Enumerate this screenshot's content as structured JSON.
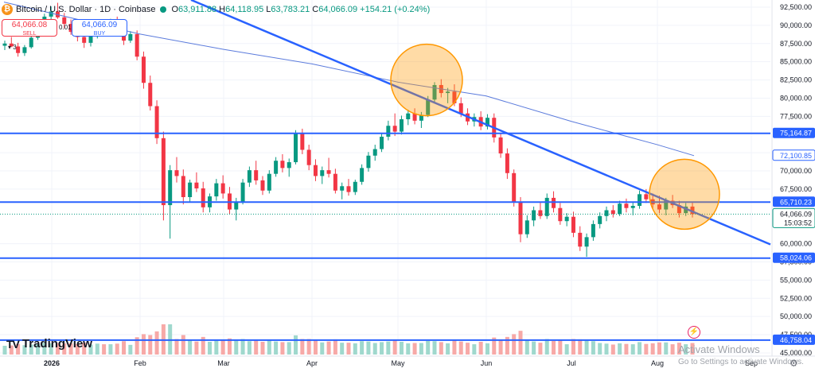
{
  "header": {
    "symbol": "Bitcoin / U.S. Dollar · 1D · Coinbase",
    "o_label": "O",
    "o_value": "63,911.88",
    "h_label": "H",
    "h_value": "64,118.95",
    "l_label": "L",
    "l_value": "63,783.21",
    "c_label": "C",
    "c_value": "64,066.09",
    "change": "+154.21 (+0.24%)"
  },
  "trade": {
    "sell_price": "64,066.08",
    "sell_label": "SELL",
    "buy_price": "64,066.09",
    "buy_label": "BUY",
    "spread": "0.01"
  },
  "indicator_toggle": "3",
  "logo_text": "TradingView",
  "watermark": {
    "line1": "Activate Windows",
    "line2": "Go to Settings to activate Windows."
  },
  "chart_data": {
    "type": "candlestick",
    "y_axis_ticks": [
      "92,500.00",
      "90,000.00",
      "87,500.00",
      "85,000.00",
      "82,500.00",
      "80,000.00",
      "77,500.00",
      "72,500.00",
      "70,000.00",
      "67,500.00",
      "60,000.00",
      "57,500.00",
      "55,000.00",
      "52,500.00",
      "50,000.00",
      "47,500.00",
      "45,000.00"
    ],
    "y_axis_values": [
      92500,
      90000,
      87500,
      85000,
      82500,
      80000,
      77500,
      72500,
      70000,
      67500,
      60000,
      57500,
      55000,
      52500,
      50000,
      47500,
      45000
    ],
    "x_axis_labels": [
      "2026",
      "Feb",
      "Mar",
      "Apr",
      "May",
      "Jun",
      "Jul",
      "Aug",
      "Sep"
    ],
    "ylim": [
      44000,
      93000
    ],
    "horizontal_levels": [
      {
        "value": 75164.87,
        "label": "75,164.87"
      },
      {
        "value": 65710.23,
        "label": "65,710.23"
      },
      {
        "value": 58024.06,
        "label": "58,024.06"
      },
      {
        "value": 46758.04,
        "label": "46,758.04"
      }
    ],
    "price_tags": [
      {
        "value": 72100.85,
        "label": "72,100.85",
        "kind": "ma"
      },
      {
        "value": 64066.09,
        "label": "64,066.09",
        "kind": "last",
        "sub": "15:03:52"
      }
    ],
    "trendline_start": [
      {
        "x": "Jan",
        "y": 93500
      }
    ],
    "trendline_end": [
      {
        "x": "Sep",
        "y": 59900
      }
    ],
    "moving_average": [
      {
        "x": "Jan",
        "y": 93200
      },
      {
        "x": "Feb",
        "y": 88800
      },
      {
        "x": "Mar",
        "y": 86700
      },
      {
        "x": "Apr",
        "y": 84700
      },
      {
        "x": "May",
        "y": 82200
      },
      {
        "x": "Jun",
        "y": 80300
      },
      {
        "x": "Jul",
        "y": 76800
      },
      {
        "x": "Aug",
        "y": 73600
      },
      {
        "x": "Aug end",
        "y": 72100
      }
    ],
    "highlight_circles": [
      {
        "x": "May",
        "y": 82500
      },
      {
        "x": "Aug",
        "y": 66800
      }
    ],
    "candles": [
      [
        87200,
        87900,
        86600,
        87500
      ],
      [
        87500,
        88400,
        87000,
        87100
      ],
      [
        87100,
        87600,
        85700,
        86200
      ],
      [
        86200,
        87300,
        85800,
        87000
      ],
      [
        87000,
        88500,
        86800,
        88300
      ],
      [
        88300,
        89900,
        88000,
        89600
      ],
      [
        89600,
        91600,
        89300,
        91200
      ],
      [
        91200,
        92600,
        90500,
        91900
      ],
      [
        91900,
        93100,
        90900,
        91100
      ],
      [
        91100,
        91700,
        89600,
        90200
      ],
      [
        90200,
        90800,
        88700,
        89100
      ],
      [
        89100,
        89700,
        87800,
        88400
      ],
      [
        88400,
        89200,
        86900,
        87600
      ],
      [
        87600,
        88800,
        87100,
        88600
      ],
      [
        88600,
        90200,
        88200,
        89900
      ],
      [
        89900,
        90700,
        88900,
        89400
      ],
      [
        89400,
        90900,
        89100,
        90600
      ],
      [
        90600,
        91200,
        89200,
        89700
      ],
      [
        89700,
        90100,
        87300,
        87900
      ],
      [
        87900,
        89200,
        87600,
        88800
      ],
      [
        88800,
        89300,
        85200,
        85700
      ],
      [
        85700,
        86400,
        81300,
        82100
      ],
      [
        82100,
        83100,
        78300,
        78900
      ],
      [
        78900,
        79700,
        73700,
        74500
      ],
      [
        74500,
        75400,
        63200,
        65300
      ],
      [
        65300,
        70800,
        60700,
        70100
      ],
      [
        70100,
        71900,
        68400,
        69300
      ],
      [
        69300,
        70200,
        65400,
        66400
      ],
      [
        66400,
        68800,
        65700,
        68400
      ],
      [
        68400,
        69800,
        67100,
        67600
      ],
      [
        67600,
        68500,
        64300,
        65000
      ],
      [
        65000,
        66900,
        64300,
        66500
      ],
      [
        66500,
        68900,
        65900,
        68300
      ],
      [
        68300,
        69400,
        66200,
        66900
      ],
      [
        66900,
        67800,
        64100,
        64700
      ],
      [
        64700,
        66300,
        63200,
        65800
      ],
      [
        65800,
        68900,
        65400,
        68400
      ],
      [
        68400,
        70600,
        67800,
        70100
      ],
      [
        70100,
        71400,
        68100,
        68700
      ],
      [
        68700,
        69300,
        66700,
        67300
      ],
      [
        67300,
        70100,
        66900,
        69600
      ],
      [
        69600,
        71900,
        69200,
        71400
      ],
      [
        71400,
        72300,
        69800,
        70400
      ],
      [
        70400,
        71700,
        69200,
        71200
      ],
      [
        71200,
        75600,
        70900,
        75100
      ],
      [
        75100,
        75800,
        72300,
        72900
      ],
      [
        72900,
        73600,
        70100,
        70800
      ],
      [
        70800,
        71600,
        68600,
        69300
      ],
      [
        69300,
        70600,
        68200,
        70100
      ],
      [
        70100,
        71800,
        69100,
        69600
      ],
      [
        69600,
        70300,
        66900,
        67300
      ],
      [
        67300,
        68400,
        66100,
        67900
      ],
      [
        67900,
        68900,
        66600,
        67100
      ],
      [
        67100,
        68800,
        66700,
        68500
      ],
      [
        68500,
        70900,
        68100,
        70400
      ],
      [
        70400,
        72600,
        69900,
        72100
      ],
      [
        72100,
        73600,
        71400,
        73000
      ],
      [
        73000,
        75100,
        72600,
        74700
      ],
      [
        74700,
        76900,
        74200,
        76200
      ],
      [
        76200,
        77900,
        74800,
        75400
      ],
      [
        75400,
        77600,
        75000,
        77100
      ],
      [
        77100,
        78400,
        76300,
        77900
      ],
      [
        77900,
        78600,
        76400,
        76900
      ],
      [
        76900,
        78100,
        75900,
        77700
      ],
      [
        77700,
        80300,
        77400,
        79800
      ],
      [
        79800,
        82200,
        79400,
        81800
      ],
      [
        81800,
        82600,
        80100,
        80700
      ],
      [
        80700,
        81400,
        79300,
        80900
      ],
      [
        80900,
        81900,
        78900,
        79300
      ],
      [
        79300,
        80100,
        77400,
        77900
      ],
      [
        77900,
        78600,
        76300,
        76800
      ],
      [
        76800,
        77900,
        76100,
        77400
      ],
      [
        77400,
        78200,
        75600,
        76100
      ],
      [
        76100,
        77800,
        75700,
        77300
      ],
      [
        77300,
        77900,
        73900,
        74600
      ],
      [
        74600,
        75200,
        71800,
        72400
      ],
      [
        72400,
        73100,
        68900,
        69700
      ],
      [
        69700,
        70200,
        65100,
        65700
      ],
      [
        65700,
        66400,
        60200,
        61300
      ],
      [
        61300,
        63900,
        60800,
        63200
      ],
      [
        63200,
        65100,
        62400,
        64600
      ],
      [
        64600,
        65700,
        63400,
        63800
      ],
      [
        63800,
        66900,
        63400,
        66300
      ],
      [
        66300,
        67200,
        64300,
        64900
      ],
      [
        64900,
        65600,
        62600,
        63100
      ],
      [
        63100,
        64200,
        62400,
        63700
      ],
      [
        63700,
        64400,
        60900,
        61500
      ],
      [
        61500,
        62400,
        59000,
        59600
      ],
      [
        59600,
        61400,
        58200,
        60900
      ],
      [
        60900,
        63200,
        60400,
        62700
      ],
      [
        62700,
        64300,
        62100,
        63800
      ],
      [
        63800,
        65100,
        63100,
        64600
      ],
      [
        64600,
        65300,
        63600,
        64100
      ],
      [
        64100,
        65900,
        63800,
        65500
      ],
      [
        65500,
        66200,
        64300,
        64900
      ],
      [
        64900,
        65700,
        63900,
        65200
      ],
      [
        65200,
        67300,
        64800,
        66800
      ],
      [
        66800,
        67500,
        65600,
        66100
      ],
      [
        66100,
        66900,
        64800,
        65400
      ],
      [
        65400,
        66600,
        64200,
        64700
      ],
      [
        64700,
        66300,
        63900,
        65900
      ],
      [
        65900,
        66700,
        64900,
        65300
      ],
      [
        65300,
        65900,
        63600,
        64200
      ],
      [
        64200,
        65600,
        63800,
        65100
      ],
      [
        65100,
        65800,
        63600,
        64066
      ]
    ]
  }
}
